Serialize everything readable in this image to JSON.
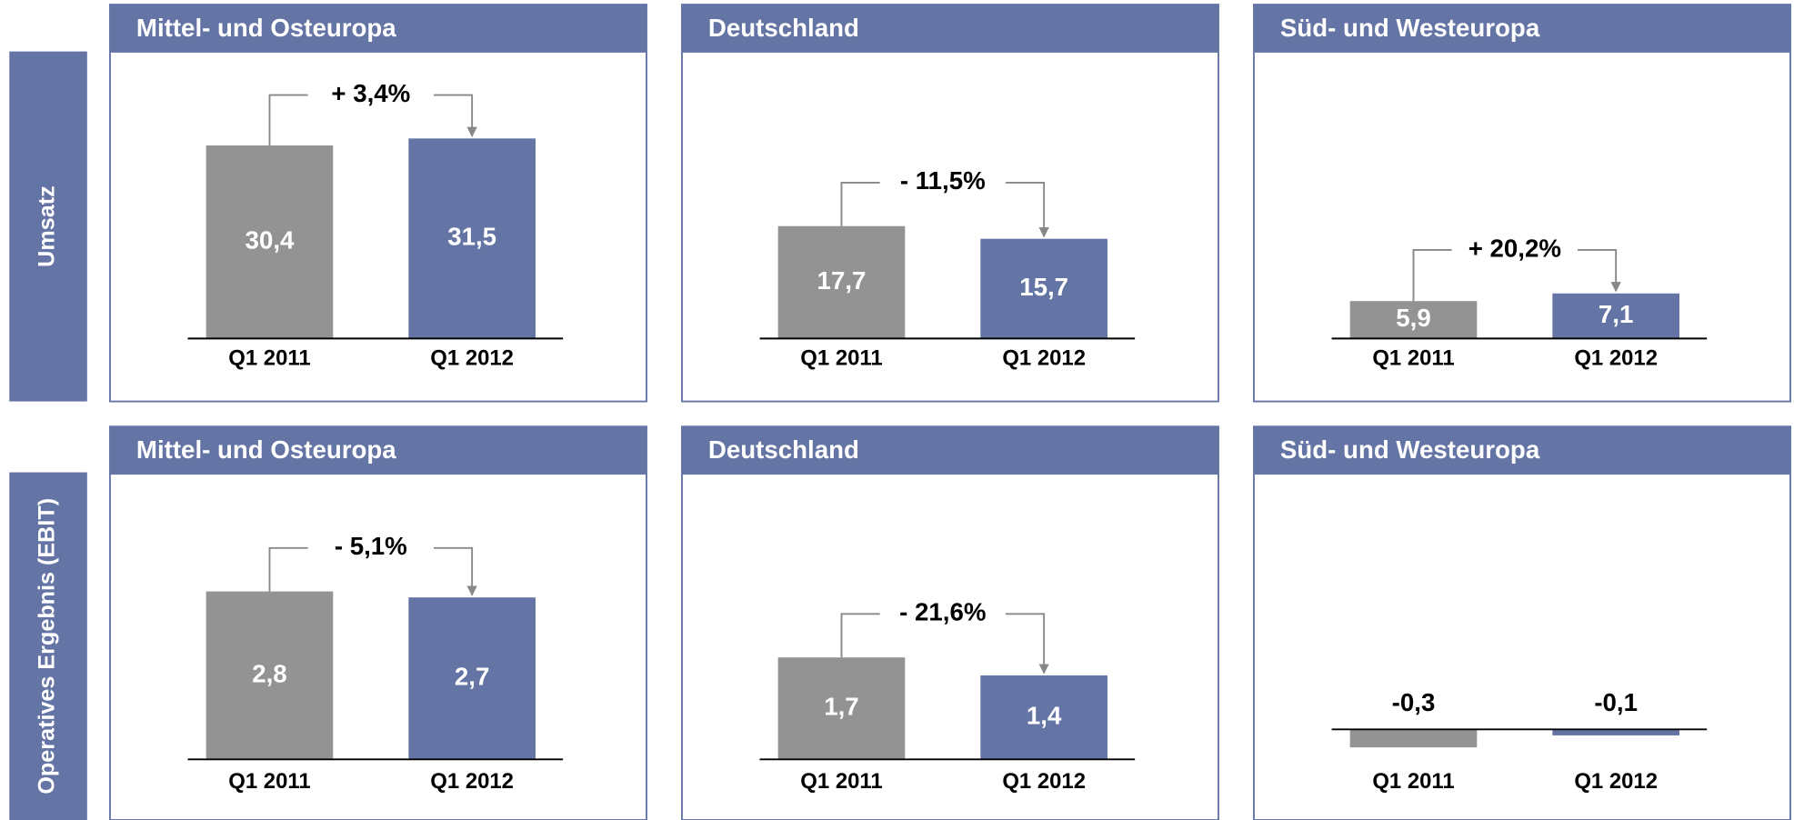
{
  "rows": [
    "Umsatz",
    "Operatives Ergebnis (EBIT)"
  ],
  "chart_data": [
    {
      "type": "bar",
      "title": "Mittel- und Osteuropa",
      "categories": [
        "Q1 2011",
        "Q1 2012"
      ],
      "values": [
        30.4,
        31.5
      ],
      "value_labels": [
        "30,4",
        "31,5"
      ],
      "colors": [
        "#939393",
        "#6474a4"
      ],
      "ylim": [
        0,
        42.5
      ],
      "change": "+ 3,4%"
    },
    {
      "type": "bar",
      "title": "Deutschland",
      "categories": [
        "Q1 2011",
        "Q1 2012"
      ],
      "values": [
        17.7,
        15.7
      ],
      "value_labels": [
        "17,7",
        "15,7"
      ],
      "colors": [
        "#939393",
        "#6474a4"
      ],
      "ylim": [
        0,
        42.5
      ],
      "change": "- 11,5%"
    },
    {
      "type": "bar",
      "title": "Süd- und Westeuropa",
      "categories": [
        "Q1 2011",
        "Q1 2012"
      ],
      "values": [
        5.9,
        7.1
      ],
      "value_labels": [
        "5,9",
        "7,1"
      ],
      "colors": [
        "#939393",
        "#6474a4"
      ],
      "ylim": [
        0,
        42.5
      ],
      "change": "+ 20,2%"
    },
    {
      "type": "bar",
      "title": "Mittel- und Osteuropa",
      "categories": [
        "Q1 2011",
        "Q1 2012"
      ],
      "values": [
        2.8,
        2.7
      ],
      "value_labels": [
        "2,8",
        "2,7"
      ],
      "colors": [
        "#939393",
        "#6474a4"
      ],
      "ylim": [
        0,
        4.5
      ],
      "change": "- 5,1%"
    },
    {
      "type": "bar",
      "title": "Deutschland",
      "categories": [
        "Q1 2011",
        "Q1 2012"
      ],
      "values": [
        1.7,
        1.4
      ],
      "value_labels": [
        "1,7",
        "1,4"
      ],
      "colors": [
        "#939393",
        "#6474a4"
      ],
      "ylim": [
        0,
        4.5
      ],
      "change": "- 21,6%"
    },
    {
      "type": "bar",
      "title": "Süd- und Westeuropa",
      "categories": [
        "Q1 2011",
        "Q1 2012"
      ],
      "values": [
        -0.3,
        -0.1
      ],
      "value_labels": [
        "-0,3",
        "-0,1"
      ],
      "colors": [
        "#939393",
        "#6474a4"
      ],
      "ylim": [
        -0.5,
        4.0
      ]
    }
  ]
}
